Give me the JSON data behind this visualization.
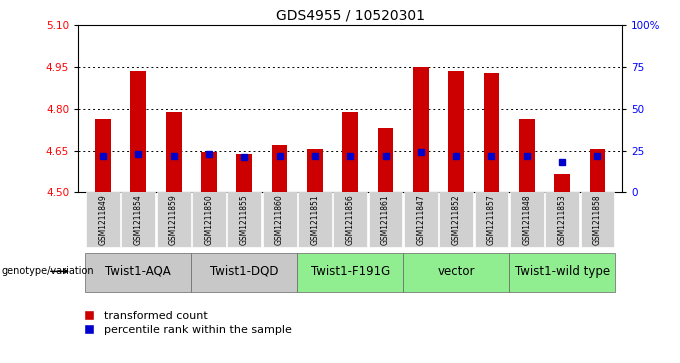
{
  "title": "GDS4955 / 10520301",
  "samples": [
    "GSM1211849",
    "GSM1211854",
    "GSM1211859",
    "GSM1211850",
    "GSM1211855",
    "GSM1211860",
    "GSM1211851",
    "GSM1211856",
    "GSM1211861",
    "GSM1211847",
    "GSM1211852",
    "GSM1211857",
    "GSM1211848",
    "GSM1211853",
    "GSM1211858"
  ],
  "red_values": [
    4.765,
    4.935,
    4.79,
    4.645,
    4.638,
    4.67,
    4.655,
    4.79,
    4.733,
    4.952,
    4.935,
    4.928,
    4.765,
    4.565,
    4.655
  ],
  "blue_values": [
    22,
    23,
    22,
    23,
    21,
    22,
    22,
    22,
    22,
    24,
    22,
    22,
    22,
    18,
    22
  ],
  "ylim_left": [
    4.5,
    5.1
  ],
  "ylim_right": [
    0,
    100
  ],
  "yticks_left": [
    4.5,
    4.65,
    4.8,
    4.95,
    5.1
  ],
  "yticks_right": [
    0,
    25,
    50,
    75,
    100
  ],
  "ytick_labels_right": [
    "0",
    "25",
    "50",
    "75",
    "100%"
  ],
  "hlines": [
    4.65,
    4.8,
    4.95
  ],
  "groups": [
    {
      "label": "Twist1-AQA",
      "start": 0,
      "end": 3,
      "color": "#c8c8c8"
    },
    {
      "label": "Twist1-DQD",
      "start": 3,
      "end": 6,
      "color": "#c8c8c8"
    },
    {
      "label": "Twist1-F191G",
      "start": 6,
      "end": 9,
      "color": "#90ee90"
    },
    {
      "label": "vector",
      "start": 9,
      "end": 12,
      "color": "#90ee90"
    },
    {
      "label": "Twist1-wild type",
      "start": 12,
      "end": 15,
      "color": "#90ee90"
    }
  ],
  "bar_color_red": "#cc0000",
  "bar_color_blue": "#0000cc",
  "bar_width": 0.45,
  "base_value": 4.5,
  "legend_label_red": "transformed count",
  "legend_label_blue": "percentile rank within the sample",
  "genotype_label": "genotype/variation",
  "title_fontsize": 10,
  "tick_fontsize": 7.5,
  "sample_fontsize": 5.5,
  "group_label_fontsize": 8.5,
  "legend_fontsize": 8
}
